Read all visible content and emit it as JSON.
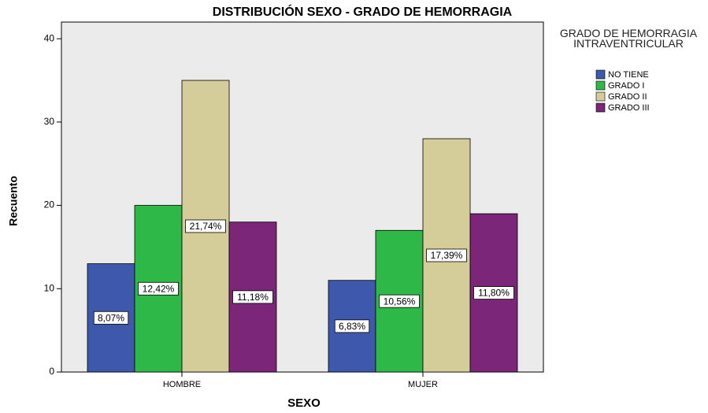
{
  "chart_data": {
    "type": "bar",
    "title": "DISTRIBUCIÓN SEXO - GRADO DE HEMORRAGIA",
    "x_label": "SEXO",
    "y_label": "Recuento",
    "legend_title": "GRADO DE HEMORRAGIA INTRAVENTRICULAR",
    "categories": [
      "HOMBRE",
      "MUJER"
    ],
    "series": [
      {
        "name": "NO TIENE",
        "color": "#3e58ac",
        "values": [
          13,
          11
        ],
        "labels": [
          "8,07%",
          "6,83%"
        ]
      },
      {
        "name": "GRADO I",
        "color": "#2eb848",
        "values": [
          20,
          17
        ],
        "labels": [
          "12,42%",
          "10,56%"
        ]
      },
      {
        "name": "GRADO II",
        "color": "#d4cc99",
        "values": [
          35,
          28
        ],
        "labels": [
          "21,74%",
          "17,39%"
        ]
      },
      {
        "name": "GRADO III",
        "color": "#7b2679",
        "values": [
          18,
          19
        ],
        "labels": [
          "11,18%",
          "11,80%"
        ]
      }
    ],
    "ylim": [
      0,
      42
    ],
    "yticks": [
      0,
      10,
      20,
      30,
      40
    ],
    "legend": "right"
  }
}
